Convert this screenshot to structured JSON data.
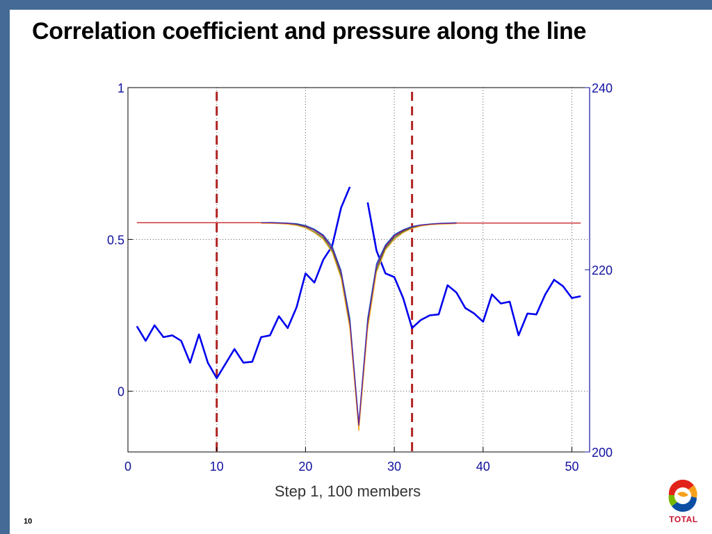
{
  "slide": {
    "title": "Correlation coefficient and pressure along the line",
    "caption": "Step 1, 100 members",
    "page_number": "10"
  },
  "logo": {
    "name": "total-logo",
    "text": "TOTAL"
  },
  "colors": {
    "frame": "#456a96",
    "pressure": "#0000ee",
    "correlation": [
      "#c62828",
      "#2e7d32",
      "#1565c0",
      "#f9a825",
      "#6a1b9a"
    ],
    "marker_lines": "#b22222",
    "right_axis": "#1010a0"
  },
  "chart_data": {
    "type": "line",
    "title": "",
    "xlabel": "",
    "ylabel": "",
    "x_ticks": [
      0,
      10,
      20,
      30,
      40,
      50
    ],
    "xlim": [
      0,
      52
    ],
    "y_left": {
      "range": [
        -0.2,
        1.0
      ],
      "ticks": [
        0,
        0.5,
        1
      ],
      "tick_labels": [
        "0",
        "0.5",
        "1"
      ]
    },
    "y_right": {
      "range": [
        200,
        240
      ],
      "ticks": [
        200,
        220,
        240
      ],
      "tick_labels": [
        "200",
        "220",
        "240"
      ]
    },
    "grid": true,
    "vertical_markers": {
      "x": [
        10,
        32
      ],
      "style": "dashed"
    },
    "series": [
      {
        "axis": "right",
        "x": [
          1,
          2,
          3,
          4,
          5,
          6,
          7,
          8,
          9,
          10,
          11,
          12,
          13,
          14,
          15,
          16,
          17,
          18,
          19,
          20,
          21,
          22,
          23,
          24,
          25,
          27,
          28,
          29,
          30,
          31,
          32,
          33,
          34,
          35,
          36,
          37,
          38,
          39,
          40,
          41,
          42,
          43,
          44,
          45,
          46,
          47,
          48,
          49,
          50,
          51
        ],
        "values": [
          213.8,
          212.2,
          213.9,
          212.6,
          212.8,
          212.2,
          209.8,
          212.9,
          209.8,
          208.1,
          209.7,
          211.3,
          209.8,
          209.9,
          212.6,
          212.8,
          214.9,
          213.6,
          215.9,
          219.6,
          218.6,
          221.1,
          222.6,
          226.8,
          229.1,
          227.4,
          222.1,
          219.6,
          219.2,
          216.9,
          213.6,
          214.5,
          215.0,
          215.1,
          218.3,
          217.5,
          215.8,
          215.2,
          214.3,
          217.3,
          216.3,
          216.5,
          212.8,
          215.2,
          215.1,
          217.3,
          218.9,
          218.2,
          216.9,
          217.1
        ]
      },
      {
        "axis": "left",
        "x": [
          1,
          15,
          16,
          17,
          18,
          19,
          20,
          21,
          22,
          23,
          24,
          25,
          26,
          27,
          28,
          29,
          30,
          31,
          32,
          33,
          34,
          35,
          36,
          37,
          51
        ],
        "values": [
          0.555,
          0.555,
          0.555,
          0.554,
          0.553,
          0.55,
          0.543,
          0.53,
          0.51,
          0.47,
          0.39,
          0.23,
          -0.115,
          0.23,
          0.41,
          0.475,
          0.51,
          0.528,
          0.54,
          0.546,
          0.55,
          0.552,
          0.553,
          0.554,
          0.554
        ]
      },
      {
        "axis": "left",
        "x": [
          15,
          16,
          17,
          18,
          19,
          20,
          21,
          22,
          23,
          24,
          25,
          26,
          27,
          28,
          29,
          30,
          31,
          32,
          33,
          34,
          35,
          36,
          37
        ],
        "values": [
          0.554,
          0.554,
          0.553,
          0.551,
          0.548,
          0.54,
          0.525,
          0.505,
          0.462,
          0.38,
          0.215,
          -0.125,
          0.215,
          0.4,
          0.47,
          0.505,
          0.525,
          0.538,
          0.545,
          0.549,
          0.551,
          0.552,
          0.553
        ]
      },
      {
        "axis": "left",
        "x": [
          15,
          16,
          17,
          18,
          19,
          20,
          21,
          22,
          23,
          24,
          25,
          26,
          27,
          28,
          29,
          30,
          31,
          32,
          33,
          34,
          35,
          36,
          37
        ],
        "values": [
          0.555,
          0.556,
          0.555,
          0.554,
          0.552,
          0.546,
          0.534,
          0.515,
          0.478,
          0.398,
          0.24,
          -0.105,
          0.24,
          0.42,
          0.482,
          0.516,
          0.532,
          0.543,
          0.548,
          0.551,
          0.553,
          0.554,
          0.555
        ]
      },
      {
        "axis": "left",
        "x": [
          15,
          16,
          17,
          18,
          19,
          20,
          21,
          22,
          23,
          24,
          25,
          26,
          27,
          28,
          29,
          30,
          31,
          32,
          33,
          34,
          35,
          36,
          37
        ],
        "values": [
          0.553,
          0.553,
          0.552,
          0.55,
          0.546,
          0.538,
          0.522,
          0.5,
          0.458,
          0.372,
          0.205,
          -0.13,
          0.205,
          0.392,
          0.465,
          0.5,
          0.522,
          0.536,
          0.544,
          0.548,
          0.55,
          0.551,
          0.552
        ]
      },
      {
        "axis": "left",
        "x": [
          15,
          16,
          17,
          18,
          19,
          20,
          21,
          22,
          23,
          24,
          25,
          26,
          27,
          28,
          29,
          30,
          31,
          32,
          33,
          34,
          35,
          36,
          37
        ],
        "values": [
          0.555,
          0.555,
          0.554,
          0.553,
          0.55,
          0.544,
          0.531,
          0.512,
          0.472,
          0.392,
          0.228,
          -0.112,
          0.228,
          0.412,
          0.478,
          0.512,
          0.53,
          0.541,
          0.547,
          0.55,
          0.552,
          0.553,
          0.554
        ]
      }
    ]
  }
}
